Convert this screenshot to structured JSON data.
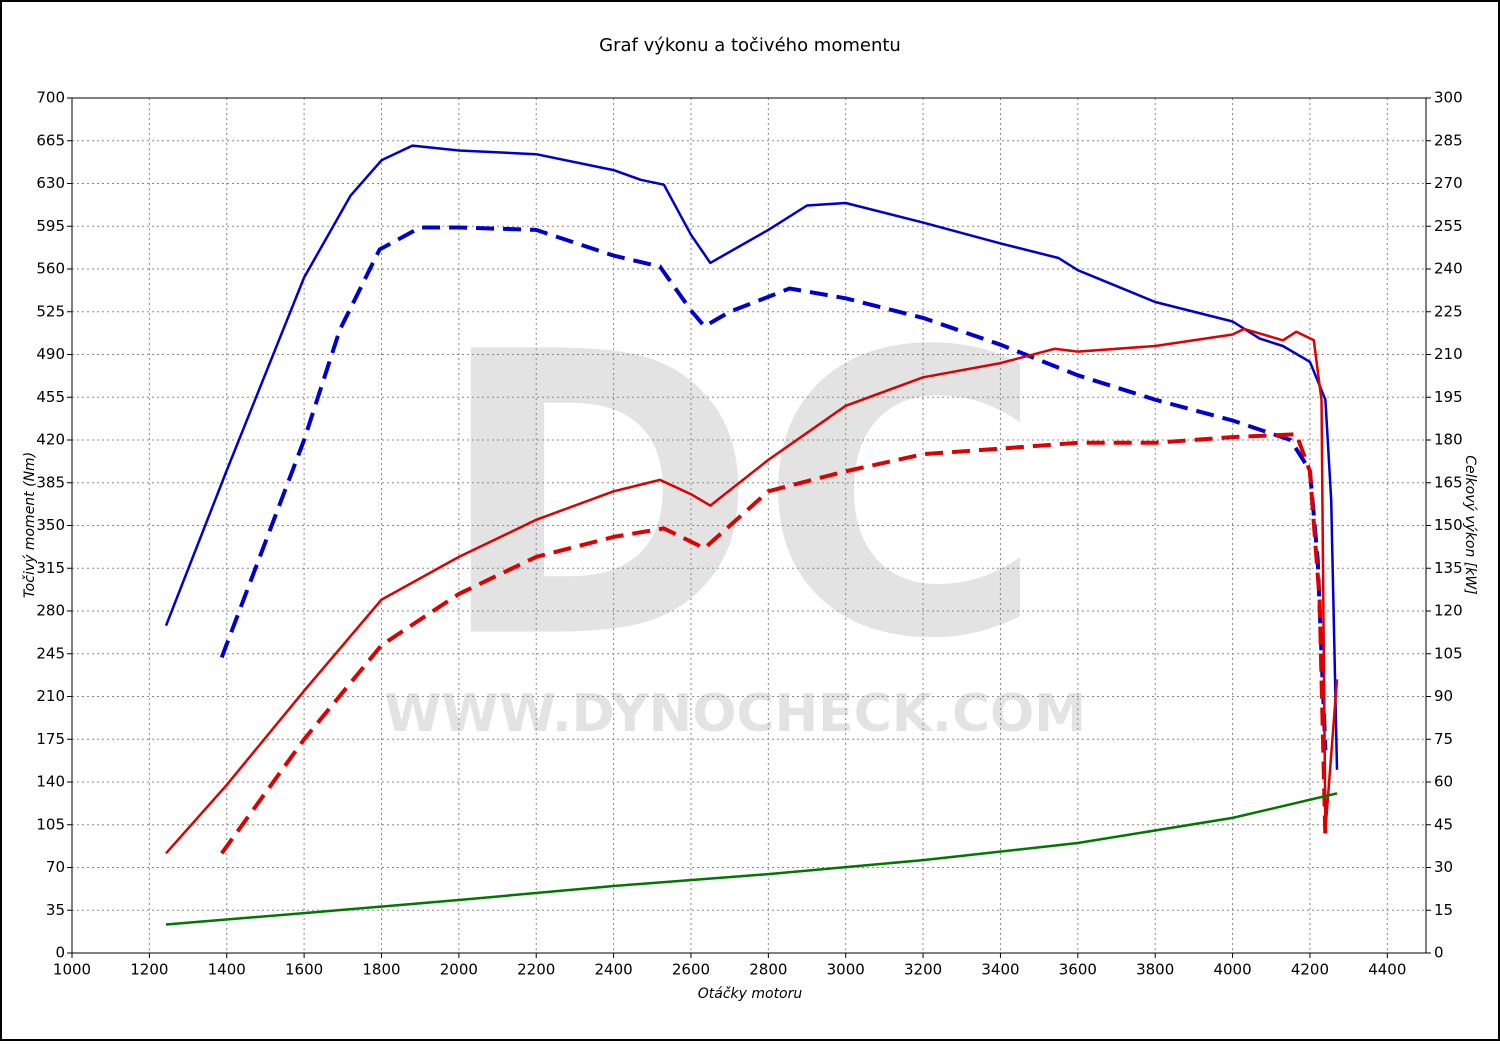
{
  "chart_data": {
    "type": "line",
    "title": "Graf výkonu a točivého momentu",
    "x_label": "Otáčky motoru",
    "y_label": "Točivý moment (Nm)",
    "y2_label": "Celkový výkon [kW]",
    "watermark": {
      "logo": "DC",
      "url": "WWW.DYNOCHECK.COM"
    },
    "grid": true,
    "xlim": [
      1000,
      4500
    ],
    "xticks": [
      1000,
      1200,
      1400,
      1600,
      1800,
      2000,
      2200,
      2400,
      2600,
      2800,
      3000,
      3200,
      3400,
      3600,
      3800,
      4000,
      4200,
      4400
    ],
    "ylim": [
      0,
      700
    ],
    "yticks": [
      0,
      35,
      70,
      105,
      140,
      175,
      210,
      245,
      280,
      315,
      350,
      385,
      420,
      455,
      490,
      525,
      560,
      595,
      630,
      665,
      700
    ],
    "y2lim": [
      0,
      300
    ],
    "y2ticks": [
      0,
      15,
      30,
      45,
      60,
      75,
      90,
      105,
      120,
      135,
      150,
      165,
      180,
      195,
      210,
      225,
      240,
      255,
      270,
      285,
      300
    ],
    "series": [
      {
        "color": "#0000cc",
        "dashed": false,
        "axis": "y",
        "x": [
          1243,
          1400,
          1600,
          1720,
          1800,
          1880,
          2000,
          2200,
          2400,
          2470,
          2530,
          2600,
          2650,
          2800,
          2900,
          3000,
          3200,
          3400,
          3550,
          3600,
          3800,
          4000,
          4070,
          4130,
          4200,
          4240,
          4255,
          4270
        ],
        "values": [
          268,
          395,
          553,
          620,
          649,
          661,
          657,
          654,
          641,
          633,
          629,
          588,
          565,
          592,
          612,
          614,
          598,
          581,
          569,
          559,
          533,
          517,
          503,
          497,
          484,
          453,
          371,
          150
        ]
      },
      {
        "color": "#0000cc",
        "dashed": true,
        "axis": "y",
        "x": [
          1387,
          1600,
          1692,
          1795,
          1900,
          2000,
          2200,
          2400,
          2520,
          2600,
          2635,
          2700,
          2855,
          3000,
          3200,
          3400,
          3600,
          3800,
          4000,
          4150,
          4200,
          4220,
          4240
        ],
        "values": [
          242,
          420,
          510,
          576,
          594,
          594,
          592,
          571,
          562,
          526,
          513,
          525,
          544,
          536,
          520,
          498,
          473,
          453,
          436,
          420,
          395,
          322,
          166
        ]
      },
      {
        "color": "#dd0000",
        "dashed": false,
        "axis": "y2",
        "x": [
          1243,
          1400,
          1600,
          1800,
          2000,
          2200,
          2400,
          2520,
          2600,
          2650,
          2800,
          3000,
          3200,
          3400,
          3540,
          3600,
          3800,
          4000,
          4030,
          4130,
          4165,
          4210,
          4230,
          4240,
          4270
        ],
        "values": [
          35,
          59,
          92,
          124,
          139,
          152,
          162,
          166,
          161,
          157,
          173,
          192,
          202,
          207,
          212,
          211,
          213,
          217,
          219,
          215,
          218,
          215,
          194,
          43,
          96
        ]
      },
      {
        "color": "#dd0000",
        "dashed": true,
        "axis": "y2",
        "x": [
          1387,
          1600,
          1800,
          2000,
          2200,
          2400,
          2530,
          2635,
          2800,
          3000,
          3200,
          3400,
          3600,
          3800,
          4000,
          4165,
          4200,
          4225,
          4240
        ],
        "values": [
          35,
          75,
          108,
          126,
          139,
          146,
          149,
          142,
          162,
          169,
          175,
          177,
          179,
          179,
          181,
          182,
          169,
          124,
          40
        ]
      },
      {
        "color": "#007700",
        "dashed": false,
        "axis": "y2",
        "x": [
          1243,
          1600,
          2000,
          2400,
          2800,
          3200,
          3600,
          4000,
          4270
        ],
        "values": [
          10,
          14,
          18.6,
          23.5,
          27.7,
          32.6,
          38.6,
          47.4,
          56
        ]
      }
    ]
  }
}
